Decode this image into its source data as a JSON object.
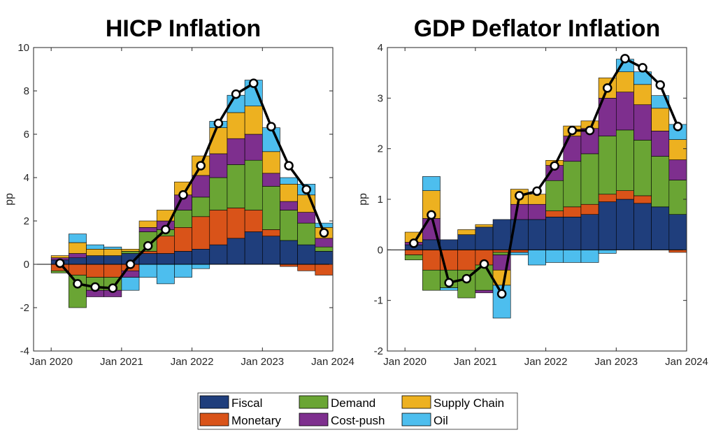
{
  "legend": {
    "items": [
      {
        "key": "fiscal",
        "label": "Fiscal",
        "color": "#1f3e7c"
      },
      {
        "key": "monetary",
        "label": "Monetary",
        "color": "#d95319"
      },
      {
        "key": "demand",
        "label": "Demand",
        "color": "#6aa534"
      },
      {
        "key": "costpush",
        "label": "Cost-push",
        "color": "#7e2f8e"
      },
      {
        "key": "supply",
        "label": "Supply Chain",
        "color": "#edb120"
      },
      {
        "key": "oil",
        "label": "Oil",
        "color": "#4dbeee"
      }
    ]
  },
  "chart_data": [
    {
      "type": "bar",
      "stacked": true,
      "title": "HICP Inflation",
      "ylabel": "pp",
      "ylim": [
        -4,
        10
      ],
      "yticks": [
        -4,
        -2,
        0,
        2,
        4,
        6,
        8,
        10
      ],
      "x_axis_type": "date",
      "xlim": [
        "2019-10",
        "2024-01"
      ],
      "xticks": [
        {
          "date": "2020-01",
          "label": "Jan 2020"
        },
        {
          "date": "2021-01",
          "label": "Jan 2021"
        },
        {
          "date": "2022-01",
          "label": "Jan 2022"
        },
        {
          "date": "2023-01",
          "label": "Jan 2023"
        },
        {
          "date": "2024-01",
          "label": "Jan 2024"
        }
      ],
      "categories": [
        "2020-Q1",
        "2020-Q2",
        "2020-Q3",
        "2020-Q4",
        "2021-Q1",
        "2021-Q2",
        "2021-Q3",
        "2021-Q4",
        "2022-Q1",
        "2022-Q2",
        "2022-Q3",
        "2022-Q4",
        "2023-Q1",
        "2023-Q2",
        "2023-Q3",
        "2023-Q4"
      ],
      "series": [
        {
          "key": "fiscal",
          "name": "Fiscal",
          "values": [
            0.2,
            0.3,
            0.4,
            0.4,
            0.5,
            0.5,
            0.5,
            0.6,
            0.7,
            0.9,
            1.2,
            1.5,
            1.3,
            1.1,
            0.9,
            0.6
          ]
        },
        {
          "key": "monetary",
          "name": "Monetary",
          "values": [
            -0.3,
            -0.5,
            -0.6,
            -0.6,
            -0.3,
            0.1,
            0.8,
            1.1,
            1.5,
            1.6,
            1.4,
            1.0,
            0.3,
            -0.1,
            -0.3,
            -0.5
          ]
        },
        {
          "key": "demand",
          "name": "Demand",
          "values": [
            -0.1,
            -1.5,
            -0.6,
            -0.6,
            0.1,
            0.9,
            0.3,
            0.8,
            0.9,
            1.5,
            2.0,
            2.3,
            2.0,
            1.4,
            1.0,
            0.2
          ]
        },
        {
          "key": "costpush",
          "name": "Cost-push",
          "values": [
            0.1,
            0.2,
            -0.3,
            -0.3,
            -0.3,
            0.2,
            0.4,
            0.7,
            1.0,
            1.1,
            1.2,
            1.2,
            0.6,
            0.4,
            0.5,
            0.4
          ]
        },
        {
          "key": "supply",
          "name": "Supply Chain",
          "values": [
            0.1,
            0.5,
            0.3,
            0.3,
            0.1,
            0.3,
            0.5,
            0.6,
            0.9,
            1.2,
            1.2,
            1.3,
            1.0,
            0.8,
            0.8,
            0.5
          ]
        },
        {
          "key": "oil",
          "name": "Oil",
          "values": [
            0.0,
            0.4,
            0.2,
            0.1,
            -0.6,
            -0.6,
            -0.9,
            -0.6,
            -0.2,
            0.3,
            0.8,
            1.2,
            1.1,
            0.3,
            0.5,
            0.2
          ]
        }
      ],
      "line": {
        "values": [
          0.05,
          -0.9,
          -1.05,
          -1.1,
          0.0,
          0.85,
          1.6,
          3.2,
          4.55,
          6.5,
          7.85,
          8.35,
          6.35,
          4.55,
          3.45,
          1.45
        ]
      }
    },
    {
      "type": "bar",
      "stacked": true,
      "title": "GDP Deflator Inflation",
      "ylabel": "pp",
      "ylim": [
        -2,
        4
      ],
      "yticks": [
        -2,
        -1,
        0,
        1,
        2,
        3,
        4
      ],
      "x_axis_type": "date",
      "xlim": [
        "2019-10",
        "2024-01"
      ],
      "xticks": [
        {
          "date": "2020-01",
          "label": "Jan 2020"
        },
        {
          "date": "2021-01",
          "label": "Jan 2021"
        },
        {
          "date": "2022-01",
          "label": "Jan 2022"
        },
        {
          "date": "2023-01",
          "label": "Jan 2023"
        },
        {
          "date": "2024-01",
          "label": "Jan 2024"
        }
      ],
      "categories": [
        "2020-Q1",
        "2020-Q2",
        "2020-Q3",
        "2020-Q4",
        "2021-Q1",
        "2021-Q2",
        "2021-Q3",
        "2021-Q4",
        "2022-Q1",
        "2022-Q2",
        "2022-Q3",
        "2022-Q4",
        "2023-Q1",
        "2023-Q2",
        "2023-Q3",
        "2023-Q4"
      ],
      "series": [
        {
          "key": "fiscal",
          "name": "Fiscal",
          "values": [
            0.1,
            0.2,
            0.2,
            0.3,
            0.45,
            0.6,
            0.6,
            0.6,
            0.65,
            0.65,
            0.7,
            0.95,
            1.0,
            0.92,
            0.85,
            0.7
          ]
        },
        {
          "key": "monetary",
          "name": "Monetary",
          "values": [
            -0.1,
            -0.4,
            -0.4,
            -0.4,
            -0.3,
            -0.05,
            -0.05,
            0.0,
            0.12,
            0.2,
            0.2,
            0.15,
            0.17,
            0.15,
            0.0,
            -0.05
          ]
        },
        {
          "key": "demand",
          "name": "Demand",
          "values": [
            -0.1,
            -0.4,
            -0.35,
            -0.55,
            -0.5,
            -0.05,
            0.0,
            0.0,
            0.6,
            0.9,
            1.0,
            1.15,
            1.2,
            1.1,
            1.0,
            0.68
          ]
        },
        {
          "key": "costpush",
          "name": "Cost-push",
          "values": [
            0.05,
            0.42,
            0.0,
            0.0,
            -0.05,
            -0.3,
            0.3,
            0.3,
            0.3,
            0.5,
            0.5,
            0.75,
            0.75,
            0.7,
            0.5,
            0.4
          ]
        },
        {
          "key": "supply",
          "name": "Supply Chain",
          "values": [
            0.2,
            0.55,
            0.0,
            0.1,
            0.05,
            -0.3,
            0.3,
            0.2,
            0.1,
            0.2,
            0.15,
            0.4,
            0.4,
            0.4,
            0.45,
            0.4
          ]
        },
        {
          "key": "oil",
          "name": "Oil",
          "values": [
            0.0,
            0.28,
            -0.05,
            0.0,
            0.0,
            -0.65,
            -0.05,
            -0.3,
            -0.25,
            -0.25,
            -0.25,
            -0.07,
            0.25,
            0.25,
            0.25,
            0.3
          ]
        }
      ],
      "line": {
        "values": [
          0.13,
          0.69,
          -0.65,
          -0.57,
          -0.28,
          -0.87,
          1.07,
          1.16,
          1.66,
          2.36,
          2.36,
          3.2,
          3.78,
          3.6,
          3.26,
          2.44
        ]
      }
    }
  ]
}
